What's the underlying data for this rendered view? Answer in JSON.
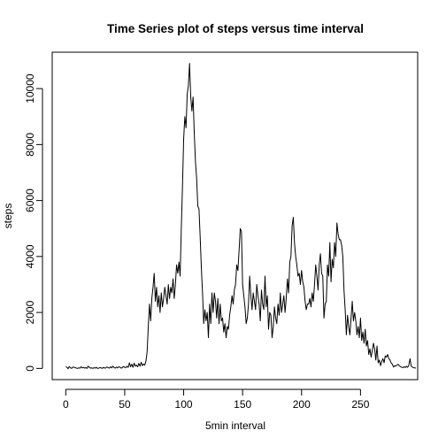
{
  "chart_data": {
    "type": "line",
    "title": "Time Series plot of steps versus time interval",
    "xlabel": "5min interval",
    "ylabel": "steps",
    "xlim": [
      -11.5,
      298.5
    ],
    "ylim": [
      -400,
      11300
    ],
    "xticks": [
      0,
      50,
      100,
      150,
      200,
      250
    ],
    "yticks": [
      0,
      2000,
      4000,
      6000,
      8000,
      10000
    ],
    "grid": false,
    "line_color": "#000000",
    "series": [
      {
        "values": [
          60,
          40,
          -10,
          70,
          20,
          0,
          50,
          40,
          30,
          10,
          0,
          20,
          10,
          60,
          20,
          40,
          10,
          30,
          0,
          80,
          40,
          10,
          20,
          0,
          30,
          10,
          40,
          0,
          10,
          30,
          20,
          0,
          40,
          10,
          20,
          50,
          30,
          10,
          60,
          20,
          80,
          30,
          10,
          50,
          20,
          60,
          40,
          10,
          30,
          70,
          40,
          30,
          80,
          40,
          200,
          60,
          150,
          40,
          190,
          80,
          120,
          60,
          180,
          80,
          220,
          100,
          160,
          120,
          250,
          600,
          1500,
          2300,
          1700,
          2500,
          2900,
          3400,
          2400,
          2900,
          2200,
          2600,
          2000,
          2700,
          2200,
          2500,
          2900,
          2600,
          2300,
          3000,
          2500,
          2900,
          2700,
          3200,
          2500,
          3000,
          3700,
          3400,
          3800,
          3300,
          5000,
          6500,
          8200,
          9000,
          8600,
          9800,
          10100,
          10900,
          9700,
          9200,
          9700,
          8400,
          7400,
          6800,
          5800,
          5700,
          4700,
          3600,
          2700,
          1600,
          2100,
          1700,
          2000,
          1100,
          2300,
          1600,
          2700,
          2000,
          2700,
          2400,
          1800,
          2500,
          1600,
          2300,
          1700,
          1800,
          1300,
          1600,
          1100,
          1500,
          1400,
          1900,
          2200,
          2600,
          2300,
          2800,
          3000,
          3700,
          3500,
          4200,
          5000,
          4900,
          3000,
          2600,
          2200,
          1600,
          1800,
          2300,
          3300,
          2600,
          2100,
          2700,
          2400,
          2100,
          3000,
          2600,
          2300,
          1700,
          2800,
          2300,
          2100,
          3300,
          2200,
          2600,
          1400,
          2000,
          1900,
          1100,
          1500,
          2200,
          1800,
          1600,
          2300,
          1900,
          2700,
          2000,
          2300,
          2600,
          2000,
          2500,
          3200,
          2700,
          3800,
          4000,
          5100,
          5400,
          4500,
          4000,
          3700,
          3300,
          3400,
          3000,
          3500,
          3100,
          2900,
          2400,
          2100,
          2300,
          2300,
          2500,
          2200,
          2700,
          2400,
          3000,
          3700,
          3300,
          2800,
          3700,
          4100,
          3400,
          3300,
          1800,
          2300,
          2400,
          3700,
          3300,
          4500,
          3100,
          3900,
          3600,
          4500,
          4000,
          5200,
          4800,
          4600,
          4600,
          4400,
          4000,
          2800,
          2100,
          1200,
          1900,
          1500,
          1200,
          1800,
          2400,
          1700,
          2000,
          1700,
          1200,
          1500,
          1100,
          1800,
          1000,
          1300,
          900,
          1400,
          800,
          1000,
          500,
          700,
          400,
          650,
          900,
          700,
          300,
          800,
          200,
          300,
          100,
          250,
          350,
          200,
          450,
          400,
          500,
          350,
          300,
          200,
          150,
          50,
          100,
          80,
          120,
          150,
          90,
          60,
          40,
          30,
          60,
          30,
          80,
          40,
          120,
          350,
          80,
          50,
          30,
          20,
          10
        ]
      }
    ]
  }
}
